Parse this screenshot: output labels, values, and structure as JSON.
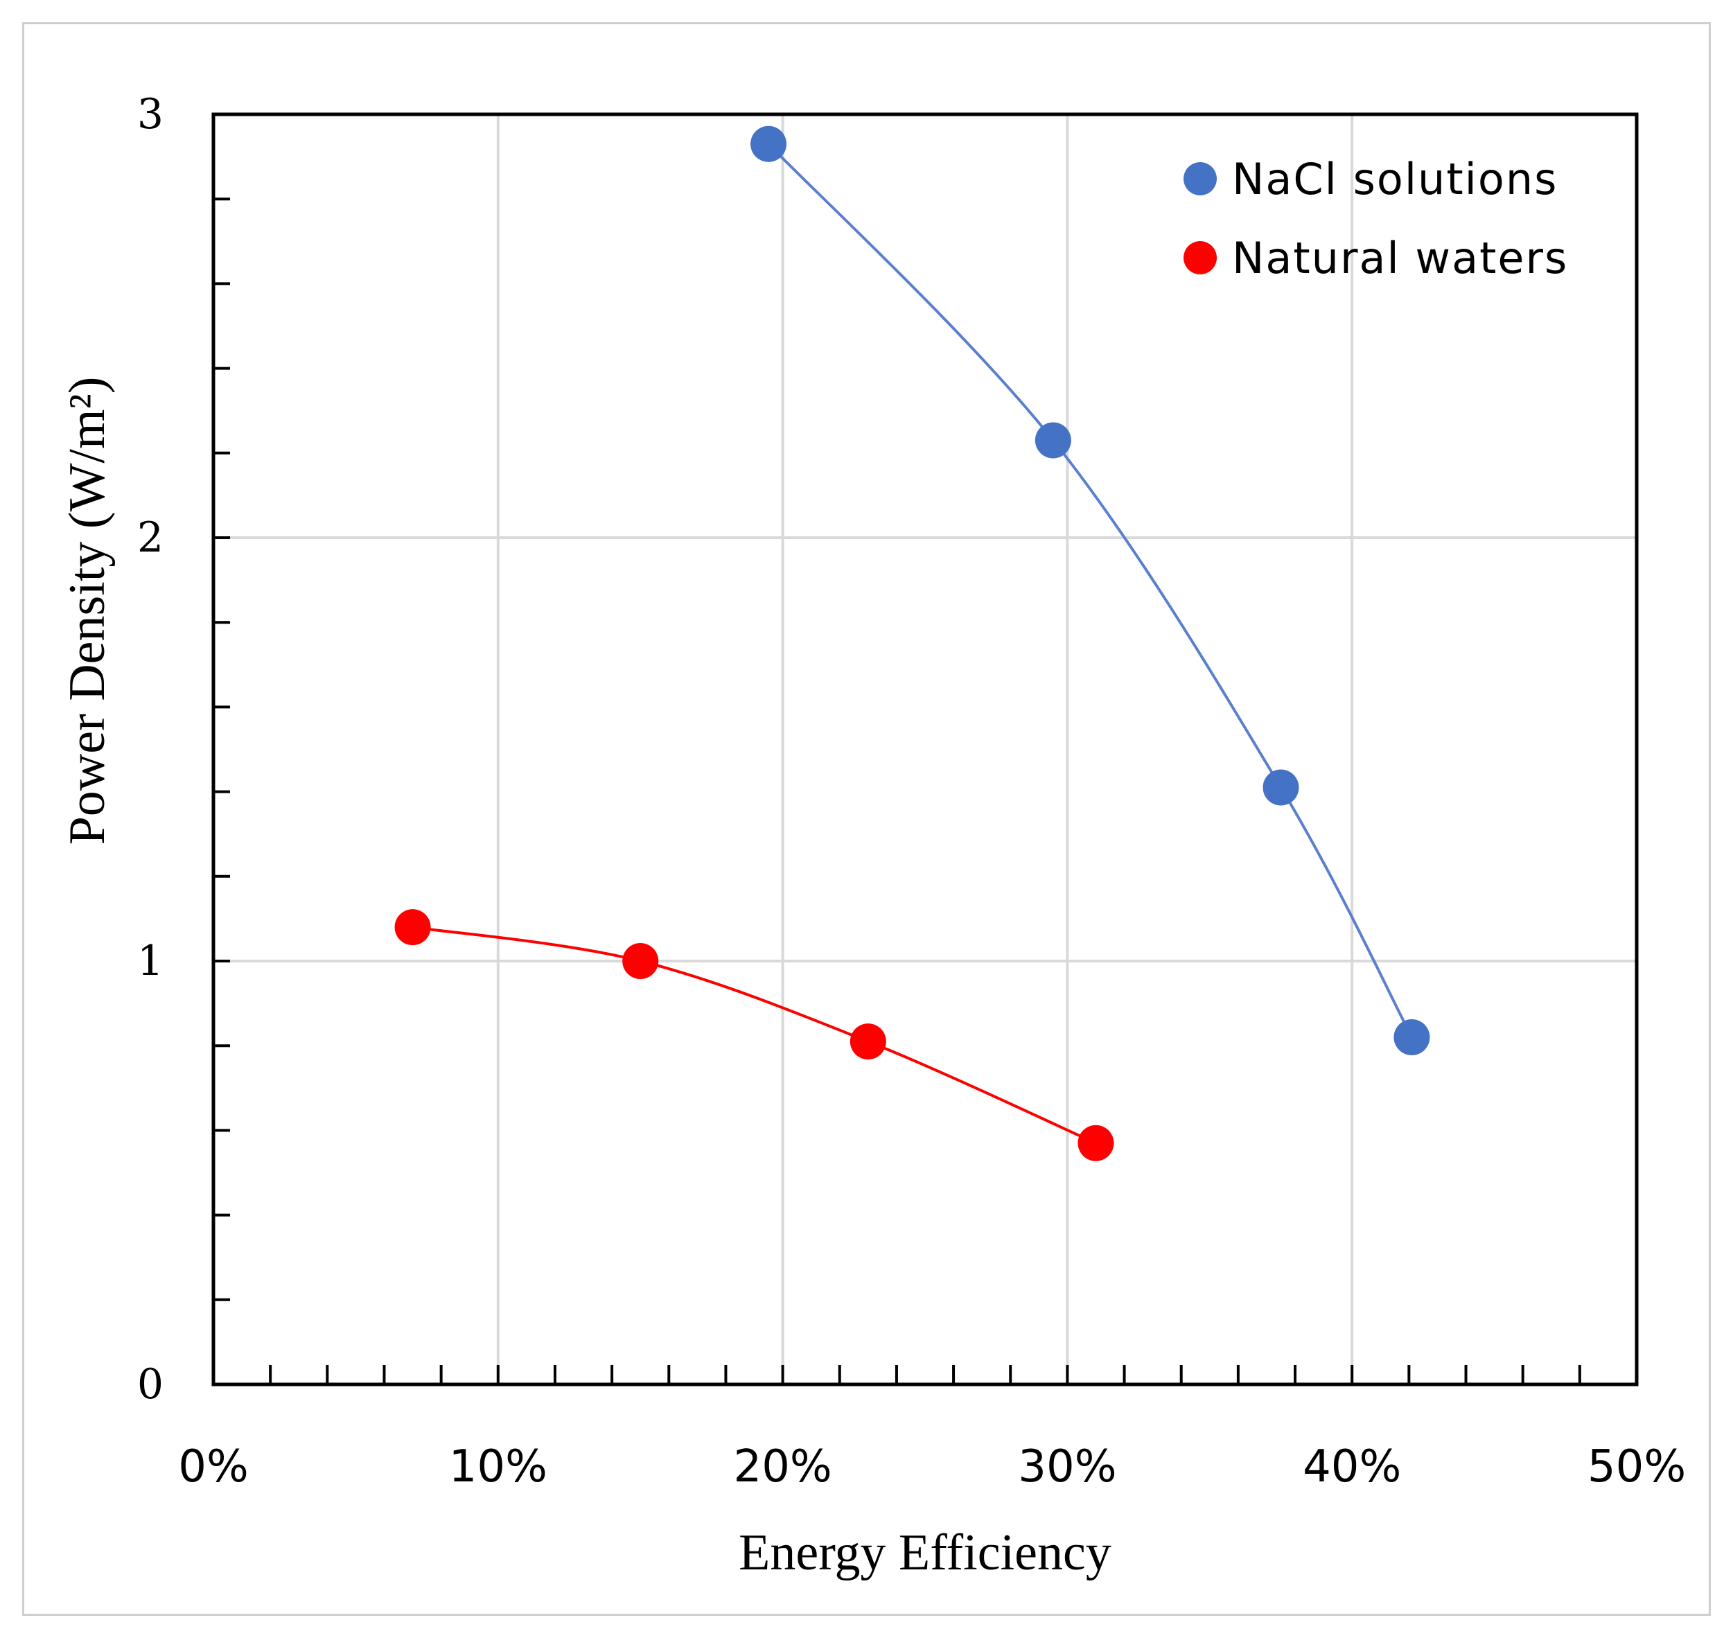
{
  "chart_data": {
    "type": "scatter",
    "xlabel": "Energy Efficiency",
    "ylabel": "Power Density (W/m²)",
    "xlim": [
      0,
      0.5
    ],
    "ylim": [
      0,
      3
    ],
    "x_ticks": [
      "0%",
      "10%",
      "20%",
      "30%",
      "40%",
      "50%"
    ],
    "y_ticks": [
      "0",
      "1",
      "2",
      "3"
    ],
    "x_tick_values": [
      0,
      0.1,
      0.2,
      0.3,
      0.4,
      0.5
    ],
    "y_tick_values": [
      0,
      1,
      2,
      3
    ],
    "x_minor_step": 0.02,
    "y_minor_step": 0.2,
    "grid": true,
    "legend_position": "top-right",
    "series": [
      {
        "name": "NaCl solutions",
        "color": "#4472c4",
        "line_color": "#5b7fcf",
        "points": [
          {
            "x": 0.195,
            "y": 2.93
          },
          {
            "x": 0.295,
            "y": 2.23
          },
          {
            "x": 0.375,
            "y": 1.41
          },
          {
            "x": 0.421,
            "y": 0.82
          }
        ]
      },
      {
        "name": "Natural waters",
        "color": "#ff0000",
        "line_color": "#ff0000",
        "points": [
          {
            "x": 0.07,
            "y": 1.08
          },
          {
            "x": 0.15,
            "y": 1.0
          },
          {
            "x": 0.23,
            "y": 0.81
          },
          {
            "x": 0.31,
            "y": 0.57
          }
        ]
      }
    ]
  }
}
